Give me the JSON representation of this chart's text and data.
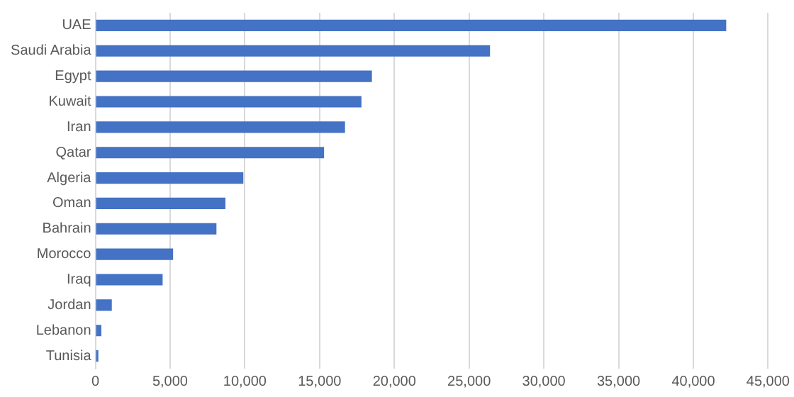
{
  "chart_data": {
    "type": "bar",
    "orientation": "horizontal",
    "categories": [
      "UAE",
      "Saudi Arabia",
      "Egypt",
      "Kuwait",
      "Iran",
      "Qatar",
      "Algeria",
      "Oman",
      "Bahrain",
      "Morocco",
      "Iraq",
      "Jordan",
      "Lebanon",
      "Tunisia"
    ],
    "values": [
      42200,
      26400,
      18500,
      17800,
      16700,
      15300,
      9900,
      8700,
      8100,
      5200,
      4500,
      1100,
      400,
      200
    ],
    "color": "#4472c4",
    "xlim": [
      0,
      45000
    ],
    "xticks": [
      {
        "value": 0,
        "label": "0"
      },
      {
        "value": 5000,
        "label": "5,000"
      },
      {
        "value": 10000,
        "label": "10,000"
      },
      {
        "value": 15000,
        "label": "15,000"
      },
      {
        "value": 20000,
        "label": "20,000"
      },
      {
        "value": 25000,
        "label": "25,000"
      },
      {
        "value": 30000,
        "label": "30,000"
      },
      {
        "value": 35000,
        "label": "35,000"
      },
      {
        "value": 40000,
        "label": "40,000"
      },
      {
        "value": 45000,
        "label": "45,000"
      }
    ],
    "grid": "x"
  }
}
